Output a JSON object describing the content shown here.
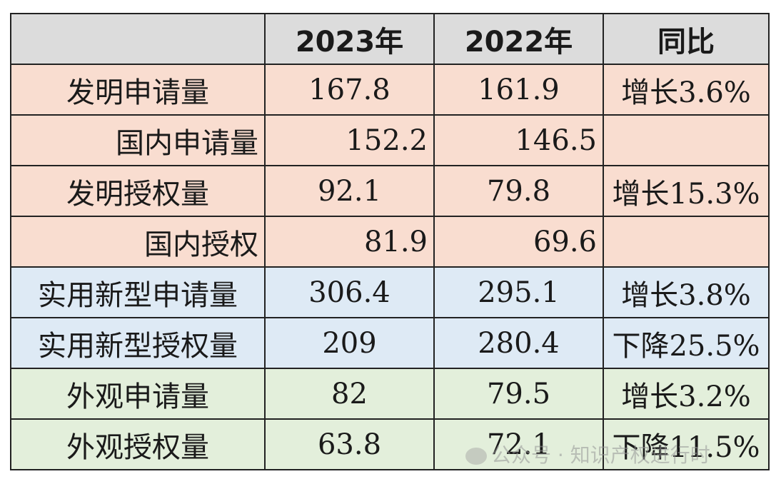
{
  "header": [
    "",
    "2023年",
    "2022年",
    "同比"
  ],
  "rows": [
    {
      "label": "发明申请量",
      "y2023": "167.8",
      "y2022": "161.9",
      "yoy": "增长3.6%",
      "group": "pink",
      "sub": false
    },
    {
      "label": "国内申请量",
      "y2023": "152.2",
      "y2022": "146.5",
      "yoy": "",
      "group": "pink",
      "sub": true
    },
    {
      "label": "发明授权量",
      "y2023": "92.1",
      "y2022": "79.8",
      "yoy": "增长15.3%",
      "group": "pink",
      "sub": false
    },
    {
      "label": "国内授权",
      "y2023": "81.9",
      "y2022": "69.6",
      "yoy": "",
      "group": "pink",
      "sub": true
    },
    {
      "label": "实用新型申请量",
      "y2023": "306.4",
      "y2022": "295.1",
      "yoy": "增长3.8%",
      "group": "blue",
      "sub": false
    },
    {
      "label": "实用新型授权量",
      "y2023": "209",
      "y2022": "280.4",
      "yoy": "下降25.5%",
      "group": "blue",
      "sub": false
    },
    {
      "label": "外观申请量",
      "y2023": "82",
      "y2022": "79.5",
      "yoy": "增长3.2%",
      "group": "green",
      "sub": false
    },
    {
      "label": "外观授权量",
      "y2023": "63.8",
      "y2022": "72.1",
      "yoy": "下降11.5%",
      "group": "green",
      "sub": false
    }
  ],
  "colors": {
    "header": "#dcdcdc",
    "pink": "#f9ddd0",
    "blue": "#deeaf5",
    "green": "#e3efdb"
  },
  "watermark": {
    "icon": "wechat-icon",
    "text": "公众号 · 知识产权进行时"
  }
}
